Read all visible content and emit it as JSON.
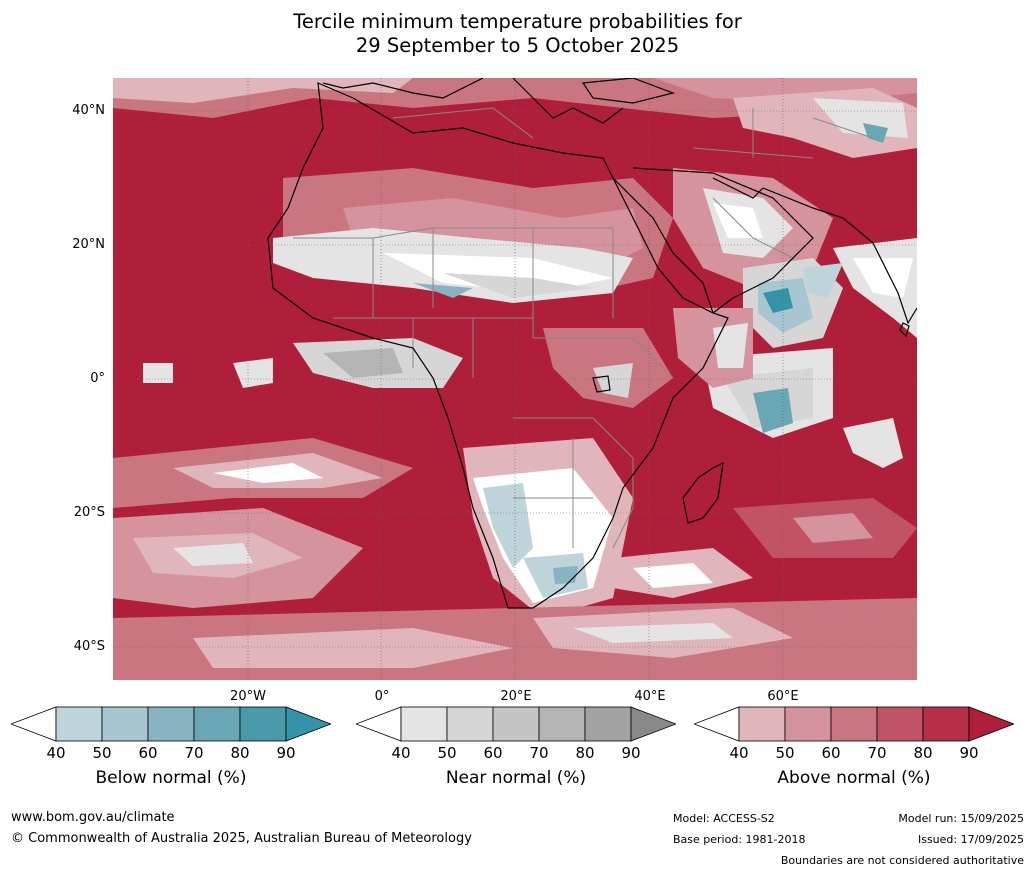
{
  "title": {
    "line1": "Tercile minimum temperature probabilities for",
    "line2": "29 September to 5 October 2025"
  },
  "map": {
    "lat_labels": [
      "40°N",
      "20°N",
      "0°",
      "20°S",
      "40°S"
    ],
    "lon_labels": [
      "20°W",
      "0°",
      "20°E",
      "40°E",
      "60°E"
    ],
    "colors": {
      "above": [
        "#e0b6bc",
        "#d4939d",
        "#c97681",
        "#c05365",
        "#b62f49",
        "#b01f3a"
      ],
      "near": [
        "#e4e4e4",
        "#d6d6d6",
        "#c5c5c5",
        "#b4b4b4",
        "#a3a3a3",
        "#888888"
      ],
      "below": [
        "#bed4db",
        "#a7c6cf",
        "#88b4c1",
        "#6aa7b6",
        "#4a9aab",
        "#3493a8"
      ]
    }
  },
  "colorbars": [
    {
      "name": "below",
      "label": "Below normal (%)",
      "ticks": [
        "40",
        "50",
        "60",
        "70",
        "80",
        "90"
      ],
      "colors": [
        "#bed4db",
        "#a7c6cf",
        "#88b4c1",
        "#6aa7b6",
        "#4a9aab",
        "#3493a8"
      ]
    },
    {
      "name": "near",
      "label": "Near normal (%)",
      "ticks": [
        "40",
        "50",
        "60",
        "70",
        "80",
        "90"
      ],
      "colors": [
        "#e4e4e4",
        "#d6d6d6",
        "#c5c5c5",
        "#b4b4b4",
        "#a3a3a3",
        "#888888"
      ]
    },
    {
      "name": "above",
      "label": "Above normal (%)",
      "ticks": [
        "40",
        "50",
        "60",
        "70",
        "80",
        "90"
      ],
      "colors": [
        "#e0b6bc",
        "#d4939d",
        "#c97681",
        "#c05365",
        "#b62f49",
        "#b01f3a"
      ]
    }
  ],
  "footer": {
    "website": "www.bom.gov.au/climate",
    "copyright": "© Commonwealth of Australia 2025, Australian Bureau of Meteorology",
    "model": "Model: ACCESS-S2",
    "base_period": "Base period: 1981-2018",
    "model_run": "Model run: 15/09/2025",
    "issued": "Issued: 17/09/2025",
    "disclaimer": "Boundaries are not considered authoritative"
  }
}
